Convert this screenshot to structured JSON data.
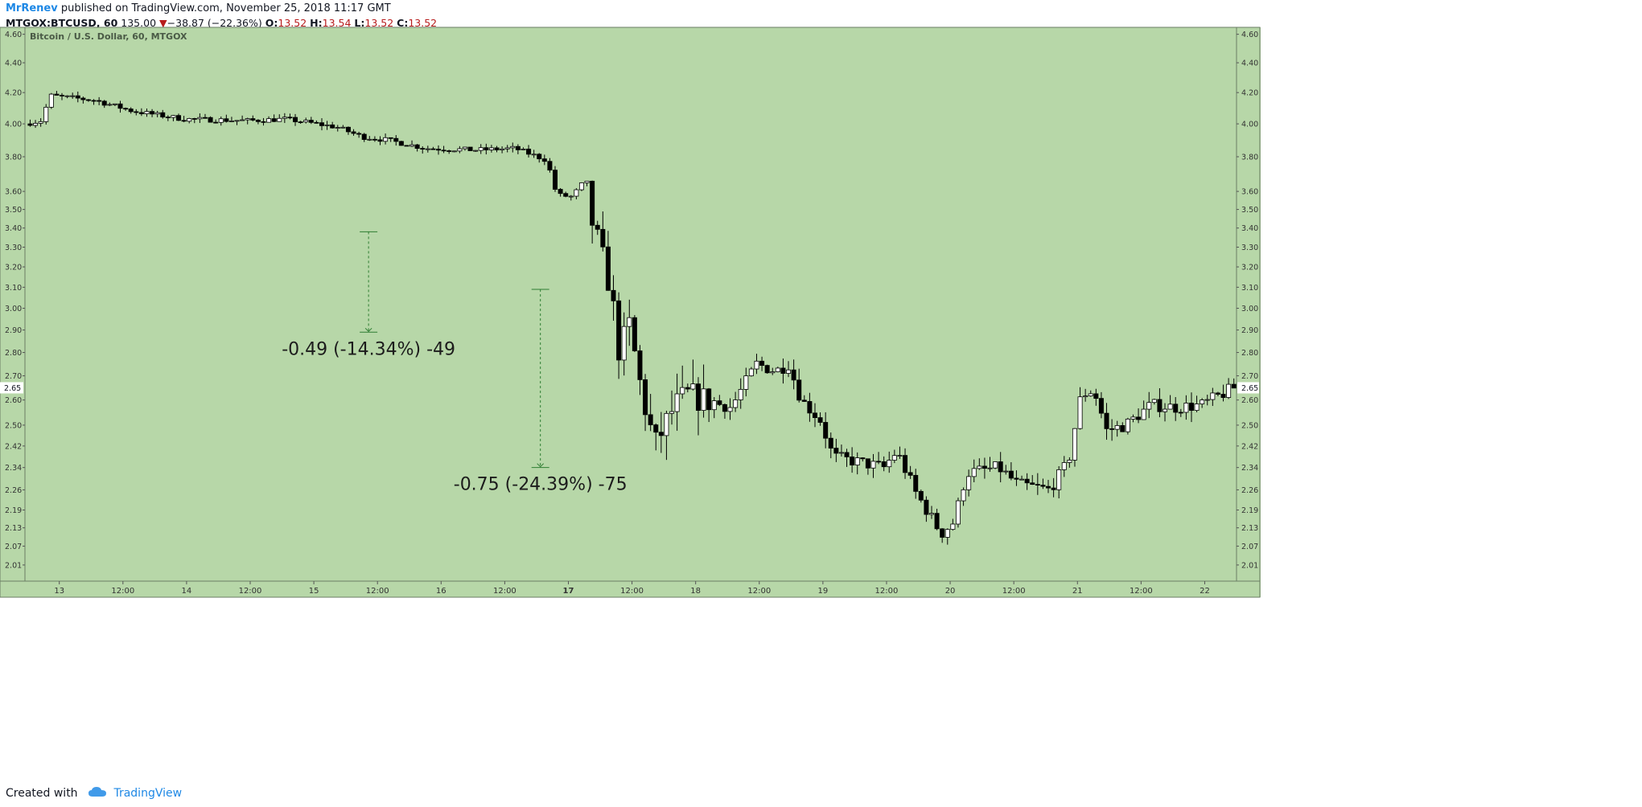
{
  "header": {
    "author": "MrRenev",
    "published_text": "published on TradingView.com, November 25, 2018 11:17 GMT",
    "symbol": "MTGOX:BTCUSD, 60",
    "last_value": "135.00",
    "change_arrow": "▼",
    "change_text": "−38.87 (−22.36%)",
    "o_label": "O:",
    "o_value": "13.52",
    "h_label": "H:",
    "h_value": "13.54",
    "l_label": "L:",
    "l_value": "13.52",
    "c_label": "C:",
    "c_value": "13.52"
  },
  "footer": {
    "created_with": "Created with",
    "brand": "TradingView",
    "logo_icon": "cloud-icon"
  },
  "colors": {
    "plot_bg": "#b7d7a8",
    "candle_up_fill": "#ffffff",
    "candle_down_fill": "#000000",
    "candle_border": "#000000",
    "measure_line": "#2e7d32",
    "change_negative": "#b71c1c",
    "brand": "#1e88e5"
  },
  "chart_data": {
    "type": "candlestick",
    "title": "Bitcoin / U.S. Dollar, 60, MTGOX",
    "y_scale": "log",
    "y_range": [
      1.96,
      4.65
    ],
    "y_ticks": [
      "4.60",
      "4.40",
      "4.20",
      "4.00",
      "3.80",
      "3.60",
      "3.50",
      "3.40",
      "3.30",
      "3.20",
      "3.10",
      "3.00",
      "2.90",
      "2.80",
      "2.70",
      "2.60",
      "2.50",
      "2.42",
      "2.34",
      "2.26",
      "2.19",
      "2.13",
      "2.07",
      "2.01"
    ],
    "x_ticks": [
      {
        "label": "13",
        "day": 0.0
      },
      {
        "label": "12:00",
        "day": 0.5
      },
      {
        "label": "14",
        "day": 1.0
      },
      {
        "label": "12:00",
        "day": 1.5
      },
      {
        "label": "15",
        "day": 2.0
      },
      {
        "label": "12:00",
        "day": 2.5
      },
      {
        "label": "16",
        "day": 3.0
      },
      {
        "label": "12:00",
        "day": 3.5
      },
      {
        "label": "17",
        "day": 4.0
      },
      {
        "label": "12:00",
        "day": 4.5
      },
      {
        "label": "18",
        "day": 5.0
      },
      {
        "label": "12:00",
        "day": 5.5
      },
      {
        "label": "19",
        "day": 6.0
      },
      {
        "label": "12:00",
        "day": 6.5
      },
      {
        "label": "20",
        "day": 7.0
      },
      {
        "label": "12:00",
        "day": 7.5
      },
      {
        "label": "21",
        "day": 8.0
      },
      {
        "label": "12:00",
        "day": 8.5
      },
      {
        "label": "22",
        "day": 9.0
      }
    ],
    "x_range_days": [
      -0.27,
      9.25
    ],
    "current_price_label": "2.65",
    "current_price": 2.65,
    "candle_keyframes": [
      {
        "day": -0.25,
        "price": 4.0
      },
      {
        "day": -0.12,
        "price": 4.02
      },
      {
        "day": -0.05,
        "price": 4.18
      },
      {
        "day": 0.3,
        "price": 4.15
      },
      {
        "day": 0.6,
        "price": 4.08
      },
      {
        "day": 1.0,
        "price": 4.03
      },
      {
        "day": 1.5,
        "price": 4.02
      },
      {
        "day": 1.8,
        "price": 4.03
      },
      {
        "day": 2.2,
        "price": 3.98
      },
      {
        "day": 2.4,
        "price": 3.92
      },
      {
        "day": 2.6,
        "price": 3.9
      },
      {
        "day": 2.9,
        "price": 3.85
      },
      {
        "day": 3.3,
        "price": 3.84
      },
      {
        "day": 3.6,
        "price": 3.85
      },
      {
        "day": 3.85,
        "price": 3.78
      },
      {
        "day": 3.93,
        "price": 3.58
      },
      {
        "day": 4.05,
        "price": 3.57
      },
      {
        "day": 4.15,
        "price": 3.66
      },
      {
        "day": 4.2,
        "price": 3.45
      },
      {
        "day": 4.35,
        "price": 3.1
      },
      {
        "day": 4.42,
        "price": 2.8
      },
      {
        "day": 4.5,
        "price": 2.92
      },
      {
        "day": 4.6,
        "price": 2.62
      },
      {
        "day": 4.7,
        "price": 2.42
      },
      {
        "day": 4.85,
        "price": 2.57
      },
      {
        "day": 4.95,
        "price": 2.62
      },
      {
        "day": 5.1,
        "price": 2.6
      },
      {
        "day": 5.3,
        "price": 2.57
      },
      {
        "day": 5.5,
        "price": 2.75
      },
      {
        "day": 5.65,
        "price": 2.72
      },
      {
        "day": 5.75,
        "price": 2.75
      },
      {
        "day": 5.85,
        "price": 2.6
      },
      {
        "day": 6.0,
        "price": 2.52
      },
      {
        "day": 6.1,
        "price": 2.38
      },
      {
        "day": 6.3,
        "price": 2.36
      },
      {
        "day": 6.5,
        "price": 2.34
      },
      {
        "day": 6.6,
        "price": 2.4
      },
      {
        "day": 6.75,
        "price": 2.25
      },
      {
        "day": 6.85,
        "price": 2.18
      },
      {
        "day": 6.95,
        "price": 2.11
      },
      {
        "day": 7.05,
        "price": 2.15
      },
      {
        "day": 7.15,
        "price": 2.32
      },
      {
        "day": 7.4,
        "price": 2.34
      },
      {
        "day": 7.55,
        "price": 2.28
      },
      {
        "day": 7.8,
        "price": 2.26
      },
      {
        "day": 7.95,
        "price": 2.36
      },
      {
        "day": 8.05,
        "price": 2.62
      },
      {
        "day": 8.15,
        "price": 2.64
      },
      {
        "day": 8.25,
        "price": 2.48
      },
      {
        "day": 8.4,
        "price": 2.5
      },
      {
        "day": 8.6,
        "price": 2.58
      },
      {
        "day": 8.8,
        "price": 2.57
      },
      {
        "day": 9.0,
        "price": 2.58
      },
      {
        "day": 9.25,
        "price": 2.65
      }
    ],
    "measurements": [
      {
        "label": "-0.49 (-14.34%) -49",
        "day": 2.43,
        "from_price": 3.38,
        "to_price": 2.89
      },
      {
        "label": "-0.75 (-24.39%) -75",
        "day": 3.78,
        "from_price": 3.09,
        "to_price": 2.34
      }
    ]
  }
}
